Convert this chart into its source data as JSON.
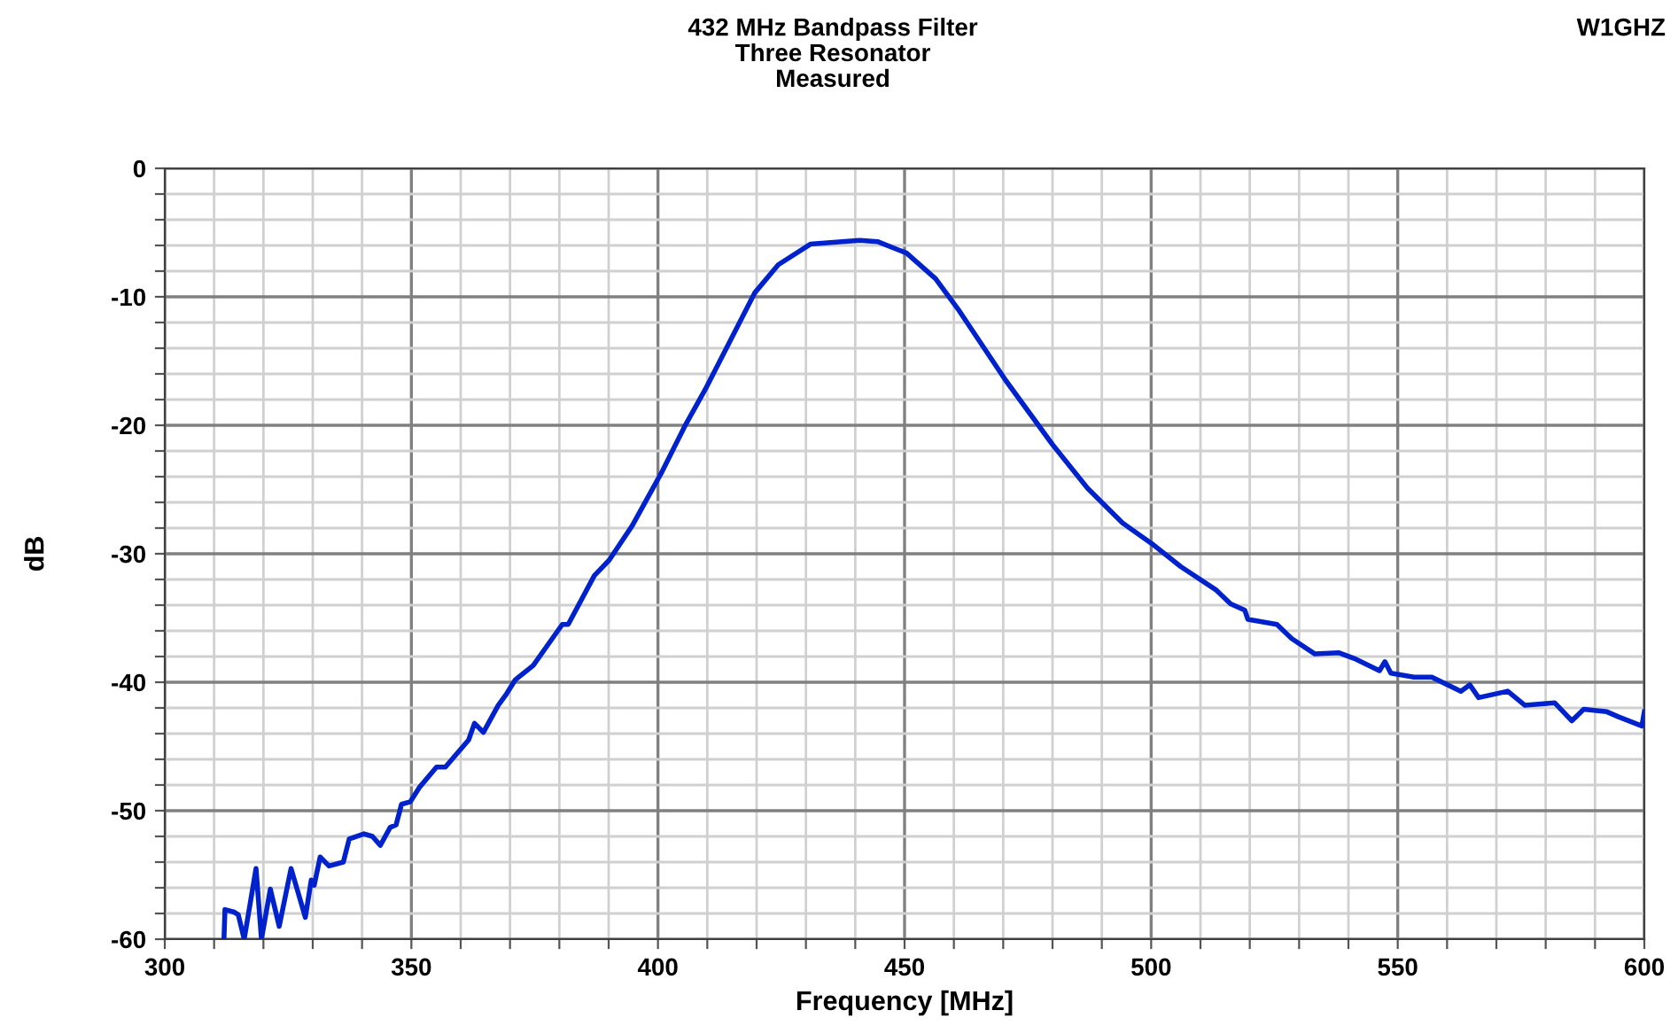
{
  "chart_data": {
    "type": "line",
    "title": "432 MHz Bandpass Filter\nThree Resonator\nMeasured",
    "xlabel": "Frequency [MHz]",
    "ylabel": "dB",
    "annotations": [
      "W1GHZ"
    ],
    "x": [
      312,
      312.2,
      314.1,
      314.9,
      316.1,
      318.5,
      319.6,
      321.4,
      323.2,
      325.6,
      328.5,
      329.7,
      330.3,
      331.5,
      333.3,
      336.2,
      337.4,
      340.4,
      342.1,
      343.7,
      345.7,
      346.9,
      348,
      349.8,
      351.6,
      355.1,
      356.9,
      361.6,
      362.8,
      364.6,
      367.6,
      369.3,
      371.1,
      374.7,
      380.6,
      381.8,
      387.1,
      390.1,
      394.8,
      400.7,
      405.4,
      409.6,
      419.6,
      424.4,
      430.9,
      440.9,
      444.5,
      450.4,
      456.3,
      461.1,
      470.5,
      480,
      487.1,
      494.2,
      500.1,
      506,
      513.1,
      516.1,
      519,
      519.6,
      525.5,
      528.5,
      533.2,
      538,
      541.5,
      546.3,
      547.4,
      548.6,
      553.3,
      556.9,
      562.8,
      564.6,
      566.4,
      572.3,
      575.8,
      581.8,
      585.3,
      587.7,
      592.4,
      594.8,
      599.5,
      600
    ],
    "series": [
      {
        "color": "#0022cc",
        "values": [
          -60,
          -57.7,
          -57.9,
          -58.1,
          -60,
          -54.5,
          -60,
          -56.1,
          -59,
          -54.5,
          -58.3,
          -55.4,
          -55.8,
          -53.6,
          -54.3,
          -54,
          -52.2,
          -51.8,
          -52,
          -52.7,
          -51.3,
          -51.1,
          -49.5,
          -49.3,
          -48.2,
          -46.6,
          -46.6,
          -44.5,
          -43.2,
          -43.9,
          -41.8,
          -40.9,
          -39.8,
          -38.7,
          -35.5,
          -35.5,
          -31.7,
          -30.5,
          -27.8,
          -23.7,
          -20.1,
          -17.2,
          -9.7,
          -7.5,
          -5.9,
          -5.6,
          -5.7,
          -6.6,
          -8.6,
          -11.1,
          -16.5,
          -21.5,
          -24.9,
          -27.6,
          -29.2,
          -31,
          -32.8,
          -33.9,
          -34.4,
          -35.1,
          -35.5,
          -36.6,
          -37.8,
          -37.7,
          -38.2,
          -39.1,
          -38.4,
          -39.3,
          -39.6,
          -39.6,
          -40.7,
          -40.2,
          -41.2,
          -40.7,
          -41.8,
          -41.6,
          -43,
          -42.1,
          -42.3,
          -42.7,
          -43.4,
          -42.3
        ]
      }
    ],
    "xlim": [
      300,
      600
    ],
    "ylim": [
      -60,
      0
    ],
    "xticks": [
      300,
      {
        "value": 310,
        "label": null
      },
      {
        "value": 320,
        "label": null
      },
      {
        "value": 330,
        "label": null
      },
      {
        "value": 340,
        "label": null
      },
      350,
      {
        "value": 360,
        "label": null
      },
      {
        "value": 370,
        "label": null
      },
      {
        "value": 380,
        "label": null
      },
      {
        "value": 390,
        "label": null
      },
      400,
      {
        "value": 410,
        "label": null
      },
      {
        "value": 420,
        "label": null
      },
      {
        "value": 430,
        "label": null
      },
      {
        "value": 440,
        "label": null
      },
      450,
      {
        "value": 460,
        "label": null
      },
      {
        "value": 470,
        "label": null
      },
      {
        "value": 480,
        "label": null
      },
      {
        "value": 490,
        "label": null
      },
      500,
      {
        "value": 510,
        "label": null
      },
      {
        "value": 520,
        "label": null
      },
      {
        "value": 530,
        "label": null
      },
      {
        "value": 540,
        "label": null
      },
      550,
      {
        "value": 560,
        "label": null
      },
      {
        "value": 570,
        "label": null
      },
      {
        "value": 580,
        "label": null
      },
      {
        "value": 590,
        "label": null
      },
      600
    ],
    "yticks": [
      -60,
      {
        "value": -58,
        "label": null
      },
      {
        "value": -56,
        "label": null
      },
      {
        "value": -54,
        "label": null
      },
      {
        "value": -52,
        "label": null
      },
      -50,
      {
        "value": -48,
        "label": null
      },
      {
        "value": -46,
        "label": null
      },
      {
        "value": -44,
        "label": null
      },
      {
        "value": -42,
        "label": null
      },
      -40,
      {
        "value": -38,
        "label": null
      },
      {
        "value": -36,
        "label": null
      },
      {
        "value": -34,
        "label": null
      },
      {
        "value": -32,
        "label": null
      },
      -30,
      {
        "value": -28,
        "label": null
      },
      {
        "value": -26,
        "label": null
      },
      {
        "value": -24,
        "label": null
      },
      {
        "value": -22,
        "label": null
      },
      -20,
      {
        "value": -18,
        "label": null
      },
      {
        "value": -16,
        "label": null
      },
      {
        "value": -14,
        "label": null
      },
      {
        "value": -12,
        "label": null
      },
      -10,
      {
        "value": -8,
        "label": null
      },
      {
        "value": -6,
        "label": null
      },
      {
        "value": -4,
        "label": null
      },
      {
        "value": -2,
        "label": null
      },
      0
    ],
    "grid": true,
    "marker": "none",
    "line_style": "solid"
  }
}
